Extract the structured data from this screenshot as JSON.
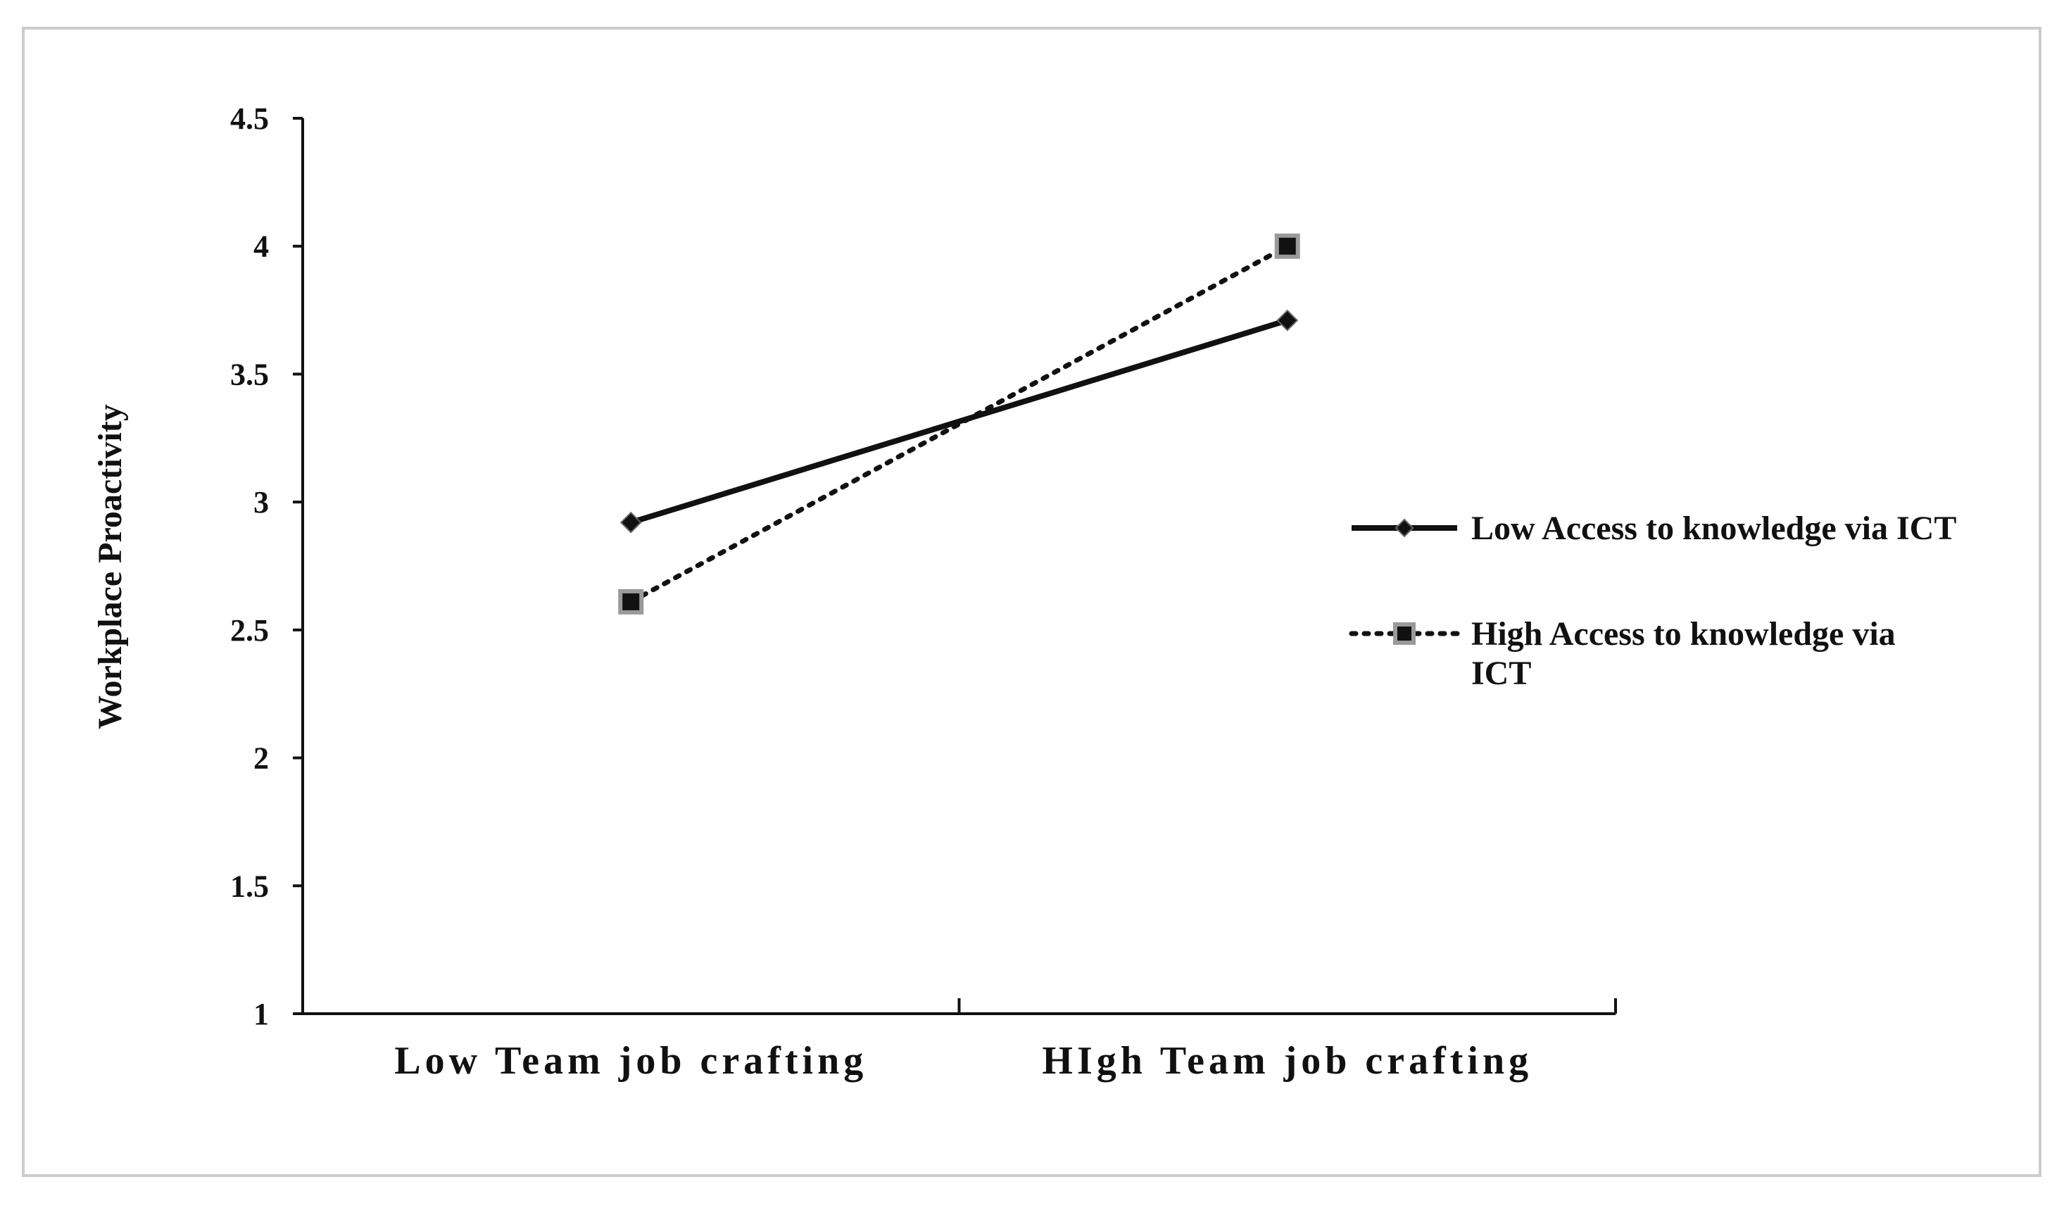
{
  "chart_data": {
    "type": "line",
    "title": "",
    "xlabel": "",
    "ylabel": "Workplace Proactivity",
    "categories": [
      "Low Team job crafting",
      "HIgh Team job crafting"
    ],
    "ylim": [
      1,
      4.5
    ],
    "yticks": [
      "1",
      "1.5",
      "2",
      "2.5",
      "3",
      "3.5",
      "4",
      "4.5"
    ],
    "grid": false,
    "legend_position": "right",
    "series": [
      {
        "name": "Low Access to knowledge via ICT",
        "name_lines": [
          "Low Access to knowledge via ICT"
        ],
        "values": [
          2.92,
          3.71
        ],
        "line_style": "solid",
        "marker": "diamond",
        "color": "#111111"
      },
      {
        "name": "High Access to knowledge via ICT",
        "name_lines": [
          "High Access to knowledge via",
          "ICT"
        ],
        "values": [
          2.61,
          4.0
        ],
        "line_style": "dotted",
        "marker": "square",
        "color": "#111111"
      }
    ]
  }
}
